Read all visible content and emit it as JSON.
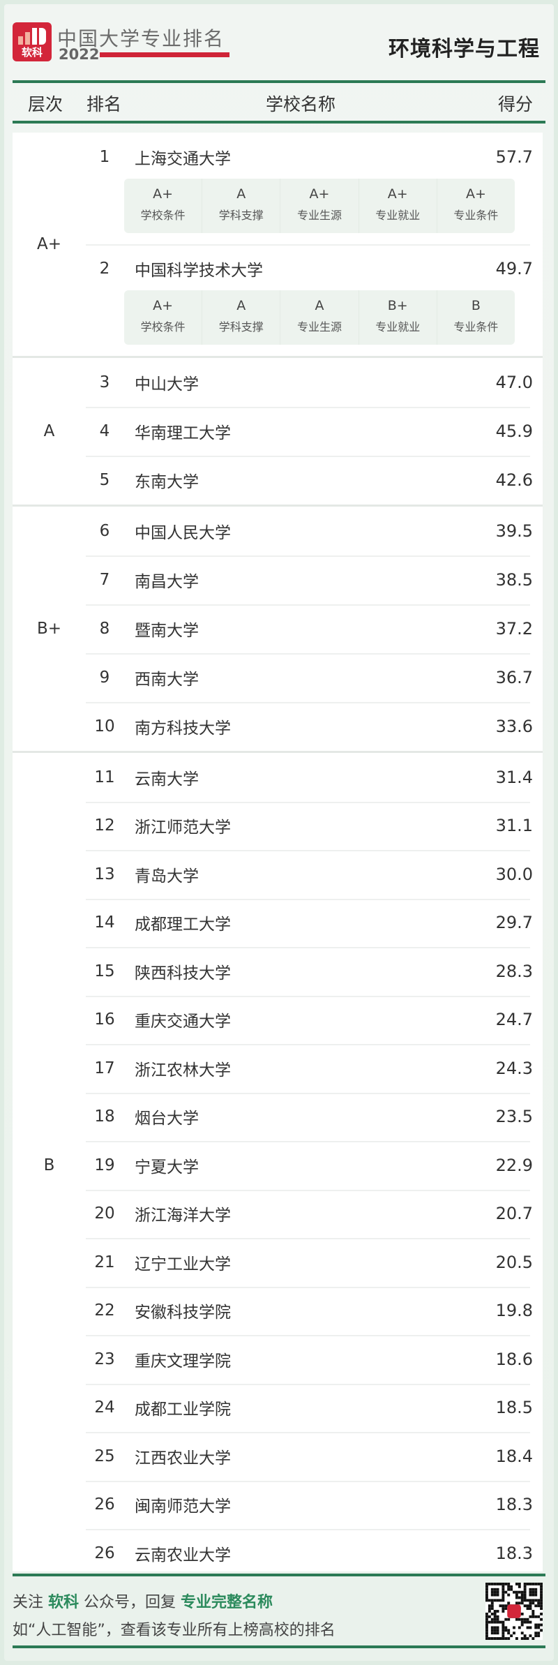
{
  "header": {
    "logo_text": "软科",
    "brand": "中国大学专业排名",
    "year": "2022",
    "subject": "环境科学与工程"
  },
  "columns": {
    "tier": "层次",
    "rank": "排名",
    "name": "学校名称",
    "score": "得分"
  },
  "colors": {
    "accent_green": "#2c7a55",
    "brand_red": "#d3263a"
  },
  "top_tier": {
    "tier": "A+",
    "items": [
      {
        "rank": "1",
        "name": "上海交通大学",
        "score": "57.7",
        "ratings": [
          {
            "grade": "A+",
            "label": "学校条件"
          },
          {
            "grade": "A",
            "label": "学科支撑"
          },
          {
            "grade": "A+",
            "label": "专业生源"
          },
          {
            "grade": "A+",
            "label": "专业就业"
          },
          {
            "grade": "A+",
            "label": "专业条件"
          }
        ]
      },
      {
        "rank": "2",
        "name": "中国科学技术大学",
        "score": "49.7",
        "ratings": [
          {
            "grade": "A+",
            "label": "学校条件"
          },
          {
            "grade": "A",
            "label": "学科支撑"
          },
          {
            "grade": "A",
            "label": "专业生源"
          },
          {
            "grade": "B+",
            "label": "专业就业"
          },
          {
            "grade": "B",
            "label": "专业条件"
          }
        ]
      }
    ]
  },
  "groups": [
    {
      "tier": "A",
      "rows": [
        {
          "rank": "3",
          "name": "中山大学",
          "score": "47.0"
        },
        {
          "rank": "4",
          "name": "华南理工大学",
          "score": "45.9"
        },
        {
          "rank": "5",
          "name": "东南大学",
          "score": "42.6"
        }
      ]
    },
    {
      "tier": "B+",
      "rows": [
        {
          "rank": "6",
          "name": "中国人民大学",
          "score": "39.5"
        },
        {
          "rank": "7",
          "name": "南昌大学",
          "score": "38.5"
        },
        {
          "rank": "8",
          "name": "暨南大学",
          "score": "37.2"
        },
        {
          "rank": "9",
          "name": "西南大学",
          "score": "36.7"
        },
        {
          "rank": "10",
          "name": "南方科技大学",
          "score": "33.6"
        }
      ]
    },
    {
      "tier": "B",
      "rows": [
        {
          "rank": "11",
          "name": "云南大学",
          "score": "31.4"
        },
        {
          "rank": "12",
          "name": "浙江师范大学",
          "score": "31.1"
        },
        {
          "rank": "13",
          "name": "青岛大学",
          "score": "30.0"
        },
        {
          "rank": "14",
          "name": "成都理工大学",
          "score": "29.7"
        },
        {
          "rank": "15",
          "name": "陕西科技大学",
          "score": "28.3"
        },
        {
          "rank": "16",
          "name": "重庆交通大学",
          "score": "24.7"
        },
        {
          "rank": "17",
          "name": "浙江农林大学",
          "score": "24.3"
        },
        {
          "rank": "18",
          "name": "烟台大学",
          "score": "23.5"
        },
        {
          "rank": "19",
          "name": "宁夏大学",
          "score": "22.9"
        },
        {
          "rank": "20",
          "name": "浙江海洋大学",
          "score": "20.7"
        },
        {
          "rank": "21",
          "name": "辽宁工业大学",
          "score": "20.5"
        },
        {
          "rank": "22",
          "name": "安徽科技学院",
          "score": "19.8"
        },
        {
          "rank": "23",
          "name": "重庆文理学院",
          "score": "18.6"
        },
        {
          "rank": "24",
          "name": "成都工业学院",
          "score": "18.5"
        },
        {
          "rank": "25",
          "name": "江西农业大学",
          "score": "18.4"
        },
        {
          "rank": "26",
          "name": "闽南师范大学",
          "score": "18.3"
        },
        {
          "rank": "26",
          "name": "云南农业大学",
          "score": "18.3"
        }
      ]
    }
  ],
  "footer": {
    "l1_a": "关注 ",
    "l1_b": "软科",
    "l1_c": " 公众号，回复 ",
    "l1_d": "专业完整名称",
    "line2": "如“人工智能”，查看该专业所有上榜高校的排名",
    "qr_icon": "qr-code-icon"
  }
}
